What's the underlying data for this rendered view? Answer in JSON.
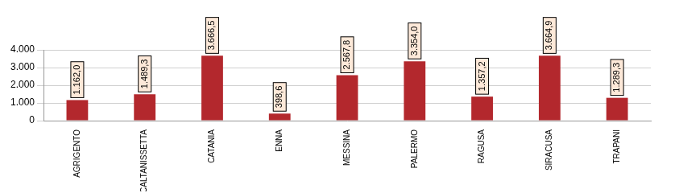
{
  "chart_data": {
    "type": "bar",
    "categories": [
      "AGRIGENTO",
      "CALTANISSETTA",
      "CATANIA",
      "ENNA",
      "MESSINA",
      "PALERMO",
      "RAGUSA",
      "SIRACUSA",
      "TRAPANI"
    ],
    "values": [
      1162.0,
      1489.3,
      3666.5,
      398.6,
      2567.8,
      3354.0,
      1357.2,
      3664.9,
      1289.3
    ],
    "value_labels": [
      "1.162,0",
      "1.489,3",
      "3.666,5",
      "398,6",
      "2.567,8",
      "3.354,0",
      "1.357,2",
      "3.664,9",
      "1.289,3"
    ],
    "data_labels": true,
    "color": "#b3282d",
    "ylim": [
      0,
      4000
    ],
    "yticks": [
      {
        "value": 0,
        "label": "0"
      },
      {
        "value": 1000,
        "label": "1.000"
      },
      {
        "value": 2000,
        "label": "2.000"
      },
      {
        "value": 3000,
        "label": "3.000"
      },
      {
        "value": 4000,
        "label": "4.000"
      }
    ],
    "grid": true
  }
}
